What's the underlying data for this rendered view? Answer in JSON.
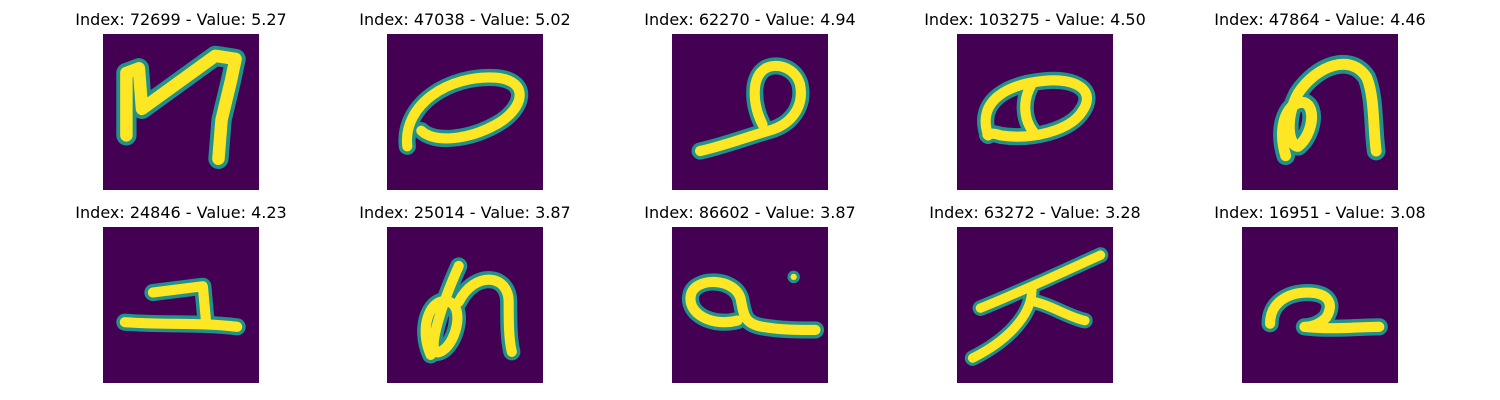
{
  "colors": {
    "background": "#440154",
    "halo": "#21918c",
    "stroke": "#fde725"
  },
  "images": [
    {
      "index": "72699",
      "value": "5.27",
      "title": "Index: 72699 - Value: 5.27",
      "glyph": "N-like handwritten character"
    },
    {
      "index": "47038",
      "value": "5.02",
      "title": "Index: 47038 - Value: 5.02",
      "glyph": "slanted loop"
    },
    {
      "index": "62270",
      "value": "4.94",
      "title": "Index: 62270 - Value: 4.94",
      "glyph": "loop with tail"
    },
    {
      "index": "103275",
      "value": "4.50",
      "title": "Index: 103275 - Value: 4.50",
      "glyph": "double loop"
    },
    {
      "index": "47864",
      "value": "4.46",
      "title": "Index: 47864 - Value: 4.46",
      "glyph": "m-like character"
    },
    {
      "index": "24846",
      "value": "4.23",
      "title": "Index: 24846 - Value: 4.23",
      "glyph": "1 with base"
    },
    {
      "index": "25014",
      "value": "3.87",
      "title": "Index: 25014 - Value: 3.87",
      "glyph": "cursive character"
    },
    {
      "index": "86602",
      "value": "3.87",
      "title": "Index: 86602 - Value: 3.87",
      "glyph": "q-like loop with dot"
    },
    {
      "index": "63272",
      "value": "3.28",
      "title": "Index: 63272 - Value: 3.28",
      "glyph": "crossed strokes"
    },
    {
      "index": "16951",
      "value": "3.08",
      "title": "Index: 16951 - Value: 3.08",
      "glyph": "2-like curve"
    }
  ]
}
